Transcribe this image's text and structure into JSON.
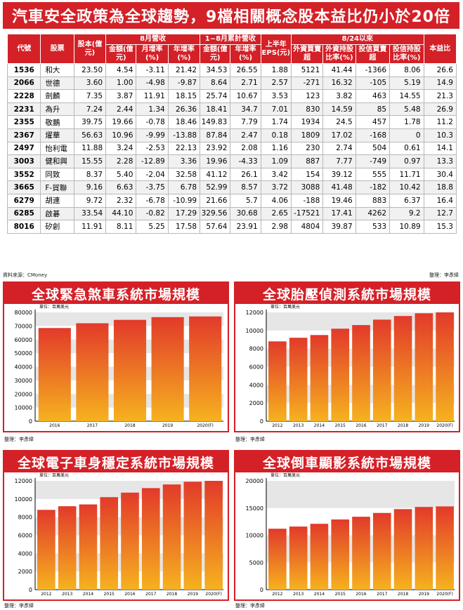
{
  "title": "汽車安全政策為全球趨勢，9檔相關概念股本益比仍小於20倍",
  "table": {
    "group_headers": {
      "monthly": "8月營收",
      "cumulative": "1~8月累計營收",
      "since": "8/24以來"
    },
    "headers": {
      "code": "代號",
      "stock": "股票",
      "capital": "股本(億元)",
      "m_amount": "金額(億元)",
      "m_mom": "月增率(%)",
      "m_yoy": "年增率(%)",
      "c_amount": "金額(億元)",
      "c_yoy": "年增率(%)",
      "eps": "上半年EPS(元)",
      "foreign": "外資買賣超",
      "foreign_ratio": "外資持股比率(%)",
      "trust": "投信買賣超",
      "trust_ratio": "投信持股比率(%)",
      "pe": "本益比"
    },
    "rows": [
      [
        "1536",
        "和大",
        "23.50",
        "4.54",
        "-3.11",
        "21.42",
        "34.53",
        "26.55",
        "1.88",
        "5121",
        "41.44",
        "-1366",
        "8.06",
        "26.6"
      ],
      [
        "2066",
        "世德",
        "3.60",
        "1.00",
        "-4.98",
        "-9.87",
        "8.64",
        "2.71",
        "2.57",
        "-271",
        "16.32",
        "-105",
        "5.19",
        "14.9"
      ],
      [
        "2228",
        "劍麟",
        "7.35",
        "3.87",
        "11.91",
        "18.15",
        "25.74",
        "10.67",
        "3.53",
        "123",
        "3.82",
        "463",
        "14.55",
        "21.3"
      ],
      [
        "2231",
        "為升",
        "7.24",
        "2.44",
        "1.34",
        "26.36",
        "18.41",
        "34.7",
        "7.01",
        "830",
        "14.59",
        "85",
        "5.48",
        "26.9"
      ],
      [
        "2355",
        "敬鵬",
        "39.75",
        "19.66",
        "-0.78",
        "18.46",
        "149.83",
        "7.79",
        "1.74",
        "1934",
        "24.5",
        "457",
        "1.78",
        "11.2"
      ],
      [
        "2367",
        "燿華",
        "56.63",
        "10.96",
        "-9.99",
        "-13.88",
        "87.84",
        "2.47",
        "0.18",
        "1809",
        "17.02",
        "-168",
        "0",
        "10.3"
      ],
      [
        "2497",
        "怡利電",
        "11.88",
        "3.24",
        "-2.53",
        "22.13",
        "23.92",
        "2.08",
        "1.16",
        "230",
        "2.74",
        "504",
        "0.61",
        "14.1"
      ],
      [
        "3003",
        "健和興",
        "15.55",
        "2.28",
        "-12.89",
        "3.36",
        "19.96",
        "-4.33",
        "1.09",
        "887",
        "7.77",
        "-749",
        "0.97",
        "13.3"
      ],
      [
        "3552",
        "同致",
        "8.37",
        "5.40",
        "-2.04",
        "32.58",
        "41.12",
        "26.1",
        "3.42",
        "154",
        "39.12",
        "555",
        "11.71",
        "30.4"
      ],
      [
        "3665",
        "F-貿聯",
        "9.16",
        "6.63",
        "-3.75",
        "6.78",
        "52.99",
        "8.57",
        "3.72",
        "3088",
        "41.48",
        "-182",
        "10.42",
        "18.8"
      ],
      [
        "6279",
        "胡連",
        "9.72",
        "2.32",
        "-6.78",
        "-10.99",
        "21.66",
        "5.7",
        "4.06",
        "-188",
        "19.46",
        "883",
        "6.37",
        "16.4"
      ],
      [
        "6285",
        "啟碁",
        "33.54",
        "44.10",
        "-0.82",
        "17.29",
        "329.56",
        "30.68",
        "2.65",
        "-17521",
        "17.41",
        "4262",
        "9.2",
        "12.7"
      ],
      [
        "8016",
        "矽創",
        "11.91",
        "8.11",
        "5.25",
        "17.58",
        "57.64",
        "23.91",
        "2.98",
        "4804",
        "39.87",
        "533",
        "10.89",
        "15.3"
      ]
    ]
  },
  "source_note": "資料來源：CMoney",
  "editor_note": "整理：李彥緯",
  "charts": [
    {
      "id": "c1",
      "title": "全球緊急煞車系統市場規模",
      "unit": "單位：百萬美元",
      "editor": "整理：李彥緯",
      "chart_data": {
        "type": "bar",
        "title": "全球緊急煞車系統市場規模",
        "ylabel": "單位：百萬美元",
        "categories": [
          "2016",
          "2017",
          "2018",
          "2019",
          "2020(F)"
        ],
        "values": [
          68500,
          72000,
          74500,
          76500,
          77000
        ],
        "ylim": [
          0,
          80000
        ],
        "ticks": [
          "0",
          "10000",
          "20000",
          "30000",
          "40000",
          "50000",
          "60000",
          "70000",
          "80000"
        ]
      }
    },
    {
      "id": "c2",
      "title": "全球胎壓偵測系統市場規模",
      "unit": "單位：百萬美元",
      "editor": "整理：李彥緯",
      "chart_data": {
        "type": "bar",
        "title": "全球胎壓偵測系統市場規模",
        "ylabel": "單位：百萬美元",
        "categories": [
          "2012",
          "2013",
          "2014",
          "2015",
          "2016",
          "2017",
          "2018",
          "2019",
          "2020(F)"
        ],
        "values": [
          8800,
          9200,
          9500,
          10200,
          10600,
          11200,
          11600,
          11900,
          12000
        ],
        "ylim": [
          0,
          12000
        ],
        "ticks": [
          "0",
          "2000",
          "4000",
          "6000",
          "8000",
          "10000",
          "12000"
        ]
      }
    },
    {
      "id": "c3",
      "title": "全球電子車身穩定系統市場規模",
      "unit": "單位：百萬美元",
      "editor": "整理：李彥緯",
      "chart_data": {
        "type": "bar",
        "title": "全球電子車身穩定系統市場規模",
        "ylabel": "單位：百萬美元",
        "categories": [
          "2012",
          "2013",
          "2014",
          "2015",
          "2016",
          "2017",
          "2018",
          "2019",
          "2020(F)"
        ],
        "values": [
          8800,
          9200,
          9400,
          10200,
          10700,
          11200,
          11600,
          11900,
          12000
        ],
        "ylim": [
          0,
          12000
        ],
        "ticks": [
          "0",
          "2000",
          "4000",
          "6000",
          "8000",
          "10000",
          "12000"
        ]
      }
    },
    {
      "id": "c4",
      "title": "全球倒車顯影系統市場規模",
      "unit": "單位：百萬美元",
      "editor": "整理：李彥緯",
      "chart_data": {
        "type": "bar",
        "title": "全球倒車顯影系統市場規模",
        "ylabel": "單位：百萬美元",
        "categories": [
          "2012",
          "2013",
          "2014",
          "2015",
          "2016",
          "2017",
          "2018",
          "2019",
          "2020(F)"
        ],
        "values": [
          11200,
          11600,
          12100,
          12900,
          13400,
          14100,
          14800,
          15200,
          15300
        ],
        "ylim": [
          0,
          20000
        ],
        "ticks": [
          "0",
          "5000",
          "10000",
          "15000",
          "20000"
        ]
      }
    }
  ],
  "colors": {
    "brand": "#d42027",
    "bar_top": "#e23a2a",
    "bar_bottom": "#f6b21f",
    "band": "#e6e6e6"
  }
}
